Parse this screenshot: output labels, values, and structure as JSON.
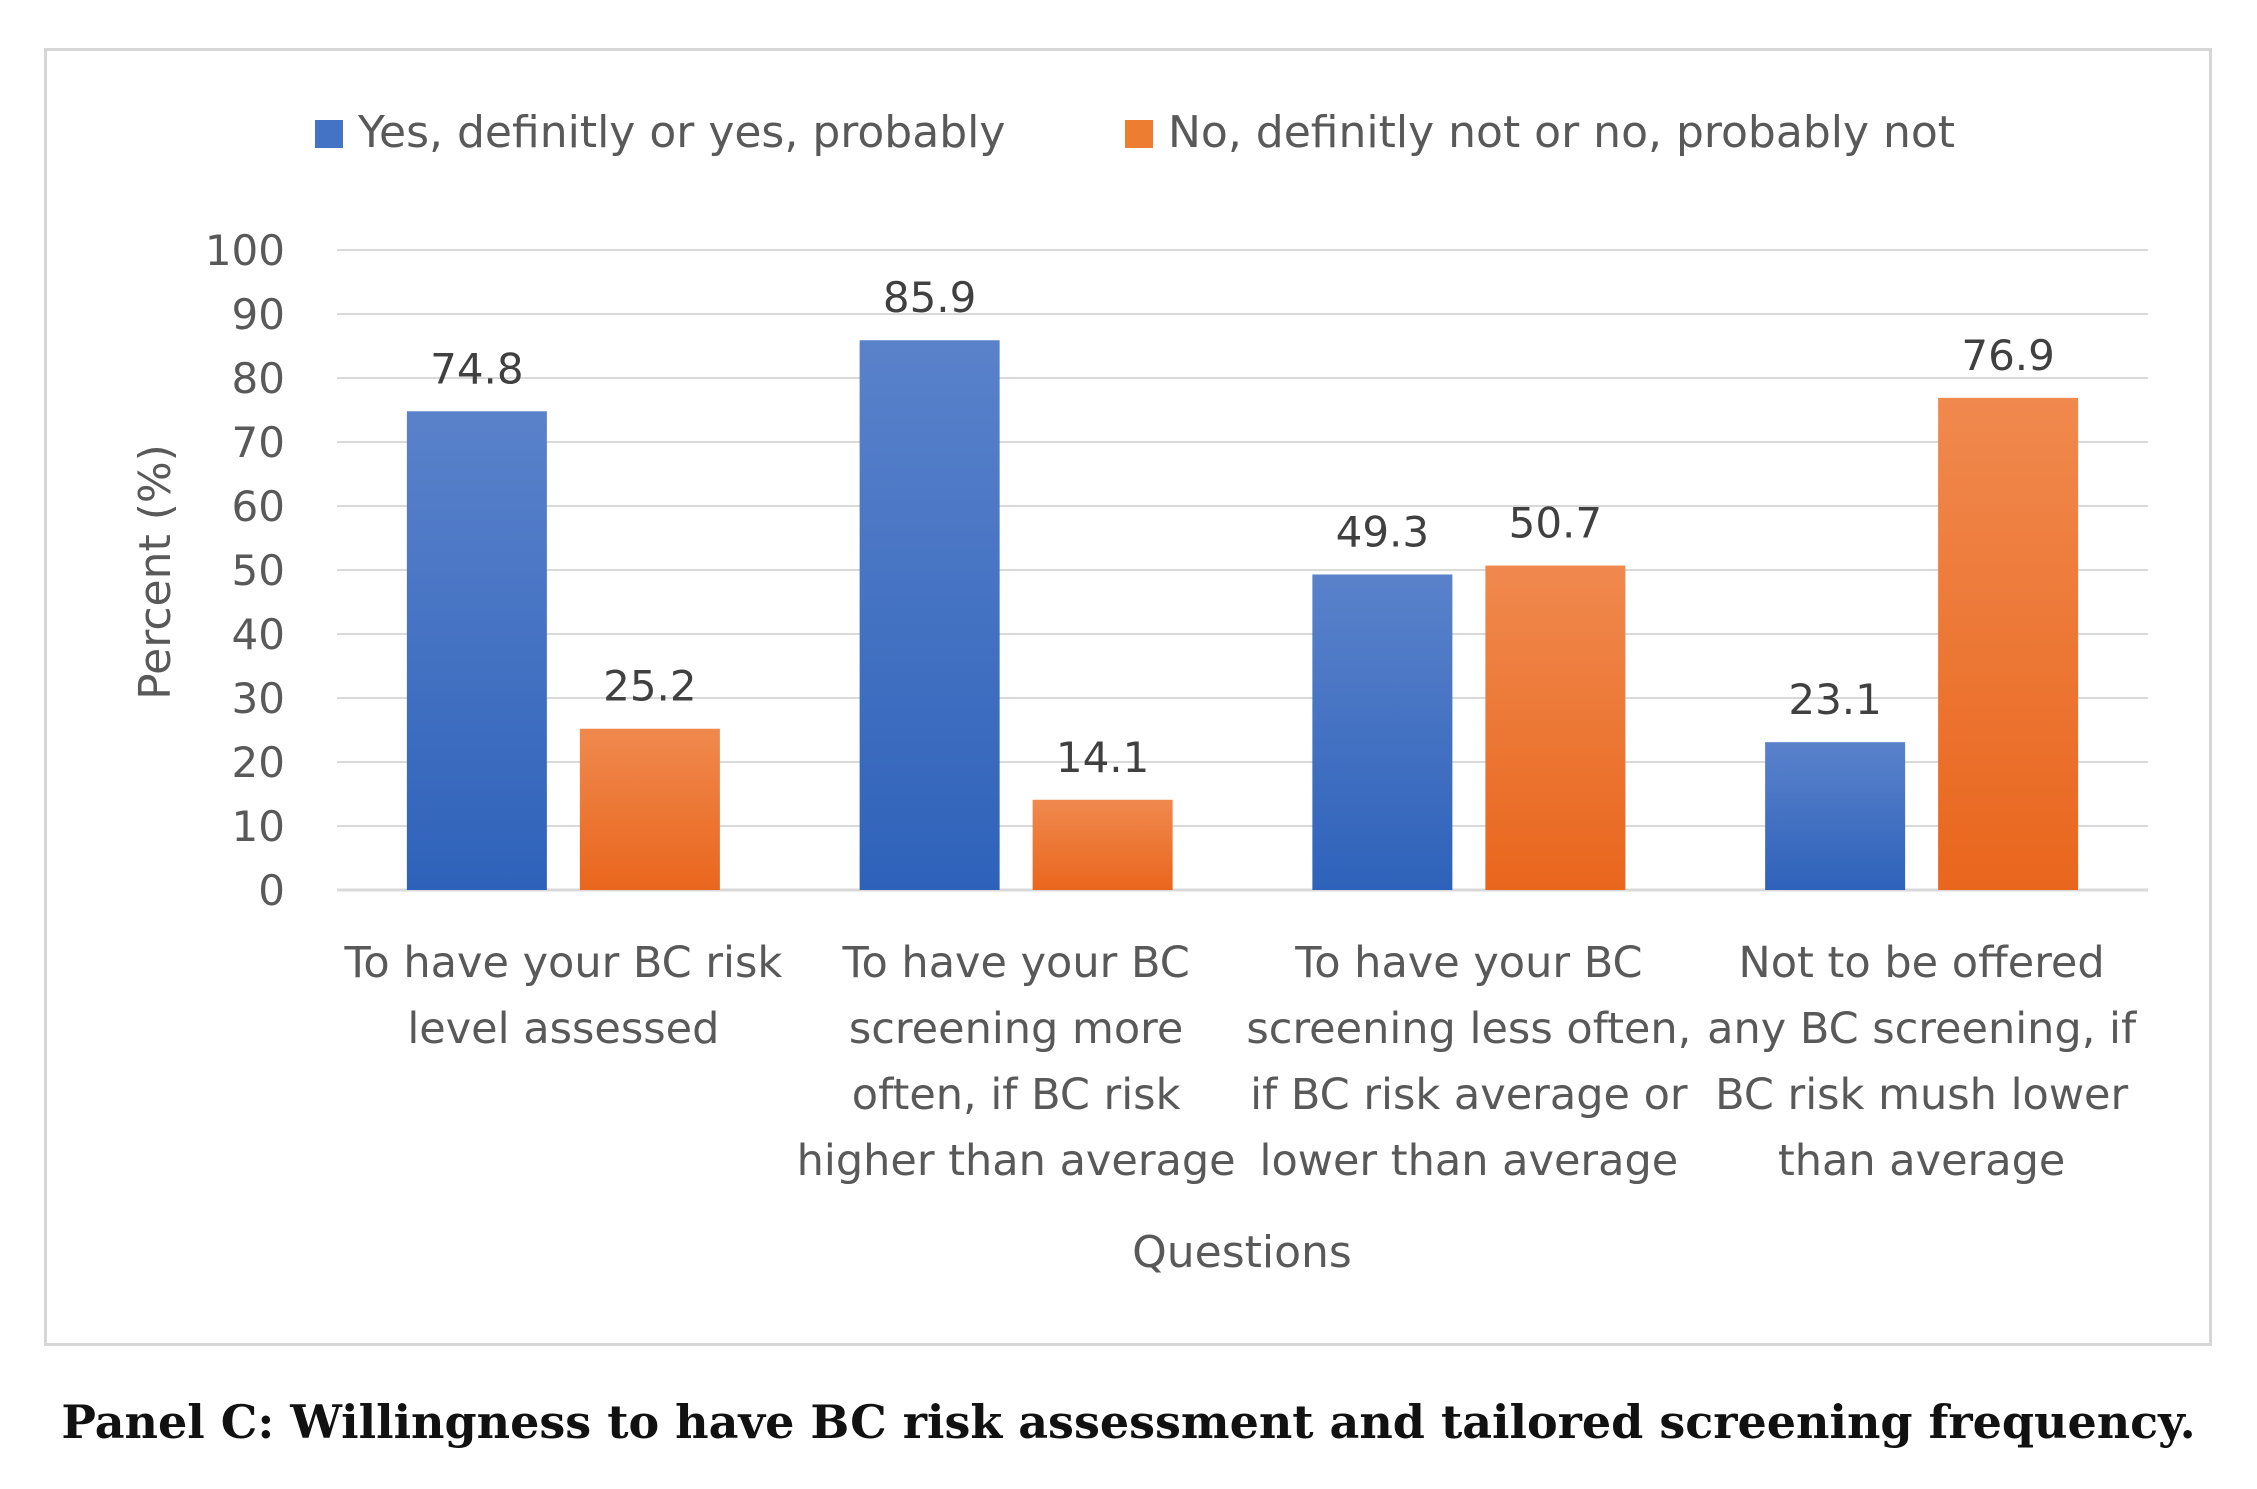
{
  "chart_data": {
    "type": "bar",
    "title": "",
    "xlabel": "Questions",
    "ylabel": "Percent (%)",
    "ylim": [
      0,
      100
    ],
    "yticks": [
      0,
      10,
      20,
      30,
      40,
      50,
      60,
      70,
      80,
      90,
      100
    ],
    "grid": true,
    "legend_position": "top",
    "categories": [
      [
        "To have your BC risk",
        "level assessed"
      ],
      [
        "To have your BC",
        "screening more",
        "often, if BC risk",
        "higher than average"
      ],
      [
        "To have your BC",
        "screening less often,",
        "if BC risk average or",
        "lower than average"
      ],
      [
        "Not to be offered",
        "any BC screening, if",
        "BC risk mush lower",
        "than average"
      ]
    ],
    "series": [
      {
        "name": "Yes, definitly or yes, probably",
        "color": "#4472C4",
        "values": [
          74.8,
          85.9,
          49.3,
          23.1
        ],
        "labels": [
          "74.8",
          "85.9",
          "49.3",
          "23.1"
        ]
      },
      {
        "name": "No, definitly not or no, probably not",
        "color": "#ED7D31",
        "values": [
          25.2,
          14.1,
          50.7,
          76.9
        ],
        "labels": [
          "25.2",
          "14.1",
          "50.7",
          "76.9"
        ]
      }
    ]
  },
  "caption": "Panel C: Willingness to have BC risk assessment and tailored screening frequency."
}
